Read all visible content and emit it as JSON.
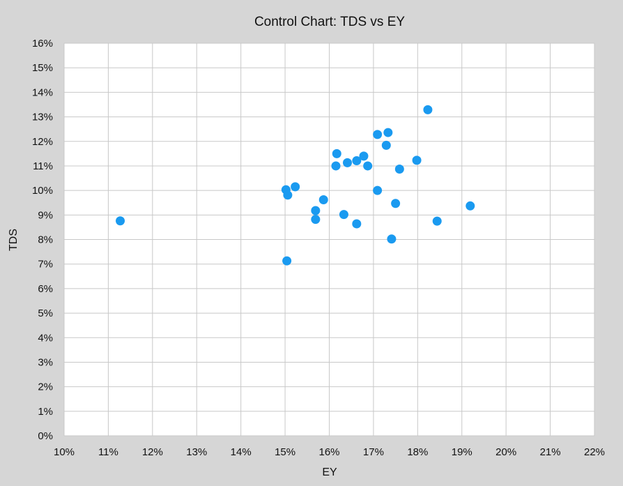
{
  "chart_data": {
    "type": "scatter",
    "title": "Control Chart: TDS vs EY",
    "xlabel": "EY",
    "ylabel": "TDS",
    "xlim": [
      0.1,
      0.22
    ],
    "ylim": [
      0.0,
      0.16
    ],
    "x_ticks": [
      0.1,
      0.11,
      0.12,
      0.13,
      0.14,
      0.15,
      0.16,
      0.17,
      0.18,
      0.19,
      0.2,
      0.21,
      0.22
    ],
    "x_tick_labels": [
      "10%",
      "11%",
      "12%",
      "13%",
      "14%",
      "15%",
      "16%",
      "17%",
      "18%",
      "19%",
      "20%",
      "21%",
      "22%"
    ],
    "y_ticks": [
      0.0,
      0.01,
      0.02,
      0.03,
      0.04,
      0.05,
      0.06,
      0.07,
      0.08,
      0.09,
      0.1,
      0.11,
      0.12,
      0.13,
      0.14,
      0.15,
      0.16
    ],
    "y_tick_labels": [
      "0%",
      "1%",
      "2%",
      "3%",
      "4%",
      "5%",
      "6%",
      "7%",
      "8%",
      "9%",
      "10%",
      "11%",
      "12%",
      "13%",
      "14%",
      "15%",
      "16%"
    ],
    "grid": true,
    "legend": "none",
    "series": [
      {
        "color": "#1a9af0",
        "points": [
          {
            "x": 0.1127,
            "y": 0.0876
          },
          {
            "x": 0.1502,
            "y": 0.1003
          },
          {
            "x": 0.1506,
            "y": 0.0981
          },
          {
            "x": 0.1523,
            "y": 0.1015
          },
          {
            "x": 0.1504,
            "y": 0.0713
          },
          {
            "x": 0.1569,
            "y": 0.0918
          },
          {
            "x": 0.1569,
            "y": 0.0882
          },
          {
            "x": 0.1587,
            "y": 0.0962
          },
          {
            "x": 0.1615,
            "y": 0.11
          },
          {
            "x": 0.1617,
            "y": 0.115
          },
          {
            "x": 0.1633,
            "y": 0.0902
          },
          {
            "x": 0.1641,
            "y": 0.1113
          },
          {
            "x": 0.1662,
            "y": 0.1121
          },
          {
            "x": 0.1662,
            "y": 0.0864
          },
          {
            "x": 0.1678,
            "y": 0.114
          },
          {
            "x": 0.1687,
            "y": 0.11
          },
          {
            "x": 0.1709,
            "y": 0.1
          },
          {
            "x": 0.1709,
            "y": 0.1228
          },
          {
            "x": 0.1729,
            "y": 0.1184
          },
          {
            "x": 0.1733,
            "y": 0.1236
          },
          {
            "x": 0.1741,
            "y": 0.0802
          },
          {
            "x": 0.175,
            "y": 0.0947
          },
          {
            "x": 0.1759,
            "y": 0.1087
          },
          {
            "x": 0.1798,
            "y": 0.1123
          },
          {
            "x": 0.1823,
            "y": 0.1329
          },
          {
            "x": 0.1844,
            "y": 0.0875
          },
          {
            "x": 0.1919,
            "y": 0.0937
          }
        ]
      }
    ]
  }
}
